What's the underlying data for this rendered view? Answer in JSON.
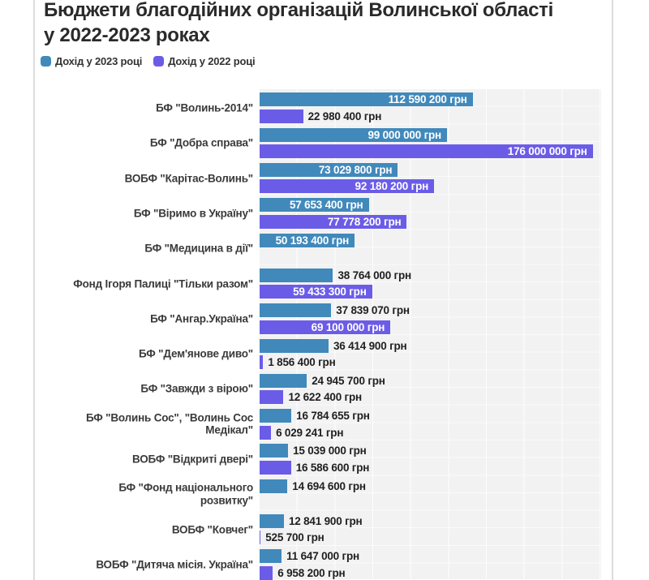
{
  "page": {
    "title_line1": "Бюджети благодійних організацій Волинської області",
    "title_line2": "у 2022-2023 роках"
  },
  "legend": [
    {
      "label": "Дохід у 2023 році",
      "color": "#4189bb"
    },
    {
      "label": "Дохід у 2022 році",
      "color": "#6b5ce8"
    }
  ],
  "colors": {
    "bar_2023": "#4189bb",
    "bar_2022": "#6b5ce8",
    "plot_background": "#f2f2f3",
    "value_inside_text": "#ffffff",
    "value_outside_text": "#1f1f1f"
  },
  "chart_data": {
    "type": "bar",
    "orientation": "horizontal",
    "unit": "грн",
    "xlim": [
      0,
      180000000
    ],
    "grid": true,
    "legend_position": "top-left",
    "series_names": [
      "Дохід у 2023 році",
      "Дохід у 2022 році"
    ],
    "rows": [
      {
        "label_lines": [
          "БФ \"Волинь-2014\""
        ],
        "v2023": 112590200,
        "v2022": 22980400
      },
      {
        "label_lines": [
          "БФ \"Добра справа\""
        ],
        "v2023": 99000000,
        "v2022": 176000000
      },
      {
        "label_lines": [
          "ВОБФ \"Карітас-Волинь\""
        ],
        "v2023": 73029800,
        "v2022": 92180200
      },
      {
        "label_lines": [
          "БФ \"Віримо в Україну\""
        ],
        "v2023": 57653400,
        "v2022": 77778200
      },
      {
        "label_lines": [
          "БФ \"Медицина в дії\""
        ],
        "v2023": 50193400,
        "v2022": null
      },
      {
        "label_lines": [
          "Фонд Ігоря Палиці \"Тільки разом\""
        ],
        "v2023": 38764000,
        "v2022": 59433300
      },
      {
        "label_lines": [
          "БФ \"Ангар.Україна\""
        ],
        "v2023": 37839070,
        "v2022": 69100000
      },
      {
        "label_lines": [
          "БФ \"Дем'янове диво\""
        ],
        "v2023": 36414900,
        "v2022": 1856400
      },
      {
        "label_lines": [
          "БФ \"Завжди з вірою\""
        ],
        "v2023": 24945700,
        "v2022": 12622400
      },
      {
        "label_lines": [
          "БФ \"Волинь Сос\", \"Волинь Сос",
          "Медікал\""
        ],
        "v2023": 16784655,
        "v2022": 6029241
      },
      {
        "label_lines": [
          "ВОБФ \"Відкриті двері\""
        ],
        "v2023": 15039000,
        "v2022": 16586600
      },
      {
        "label_lines": [
          "БФ \"Фонд національного",
          "розвитку\""
        ],
        "v2023": 14694600,
        "v2022": null
      },
      {
        "label_lines": [
          "ВОБФ \"Ковчег\""
        ],
        "v2023": 12841900,
        "v2022": 525700
      },
      {
        "label_lines": [
          "ВОБФ \"Дитяча місія. Україна\""
        ],
        "v2023": 11647000,
        "v2022": 6958200
      }
    ]
  }
}
